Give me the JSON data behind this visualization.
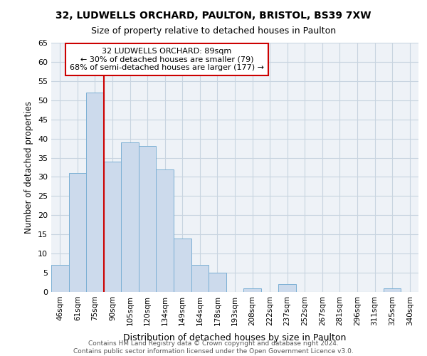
{
  "title1": "32, LUDWELLS ORCHARD, PAULTON, BRISTOL, BS39 7XW",
  "title2": "Size of property relative to detached houses in Paulton",
  "xlabel": "Distribution of detached houses by size in Paulton",
  "ylabel": "Number of detached properties",
  "footnote": "Contains HM Land Registry data © Crown copyright and database right 2024.\nContains public sector information licensed under the Open Government Licence v3.0.",
  "bar_labels": [
    "46sqm",
    "61sqm",
    "75sqm",
    "90sqm",
    "105sqm",
    "120sqm",
    "134sqm",
    "149sqm",
    "164sqm",
    "178sqm",
    "193sqm",
    "208sqm",
    "222sqm",
    "237sqm",
    "252sqm",
    "267sqm",
    "281sqm",
    "296sqm",
    "311sqm",
    "325sqm",
    "340sqm"
  ],
  "bar_values": [
    7,
    31,
    52,
    34,
    39,
    38,
    32,
    14,
    7,
    5,
    0,
    1,
    0,
    2,
    0,
    0,
    0,
    0,
    0,
    1,
    0
  ],
  "bar_color": "#ccdaec",
  "bar_edge_color": "#7aafd4",
  "annotation_text": "32 LUDWELLS ORCHARD: 89sqm\n← 30% of detached houses are smaller (79)\n68% of semi-detached houses are larger (177) →",
  "annotation_box_color": "#cc0000",
  "vline_color": "#cc0000",
  "vline_x_index": 2.5,
  "ylim": [
    0,
    65
  ],
  "yticks": [
    0,
    5,
    10,
    15,
    20,
    25,
    30,
    35,
    40,
    45,
    50,
    55,
    60,
    65
  ],
  "grid_color": "#c8d4e0",
  "background_color": "#eef2f7"
}
